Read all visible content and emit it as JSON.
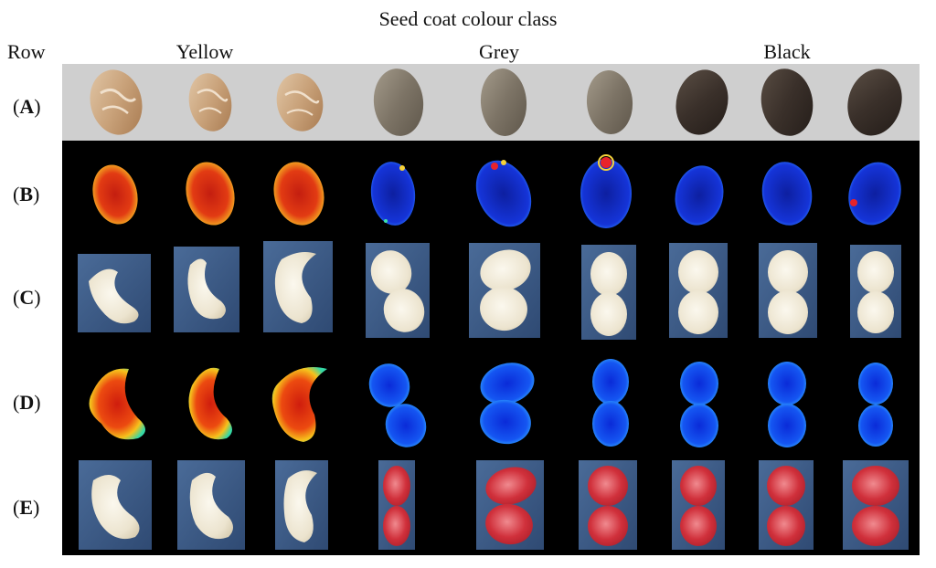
{
  "figure": {
    "title": "Seed coat colour class",
    "row_header": "Row",
    "classes": [
      "Yellow",
      "Grey",
      "Black"
    ],
    "rows": [
      {
        "open": "(",
        "letter": "A",
        "close": ")"
      },
      {
        "open": "(",
        "letter": "B",
        "close": ")"
      },
      {
        "open": "(",
        "letter": "C",
        "close": ")"
      },
      {
        "open": "(",
        "letter": "D",
        "close": ")"
      },
      {
        "open": "(",
        "letter": "E",
        "close": ")"
      }
    ]
  },
  "colors": {
    "yellow_coat": "#c9a27a",
    "grey_coat": "#7d7466",
    "black_coat": "#3a302a",
    "blue_bg": "#3c5a86",
    "cream_seed": "#ece4cf",
    "red_stain": "#d0303b"
  }
}
